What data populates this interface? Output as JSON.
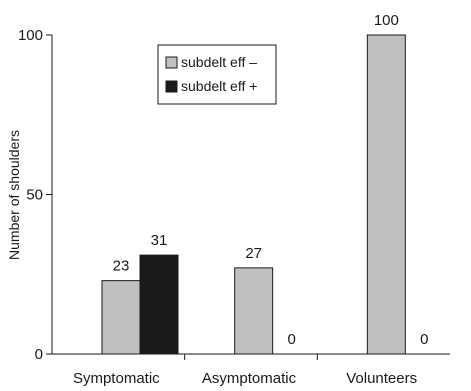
{
  "chart_data": {
    "type": "bar",
    "title": "",
    "xlabel": "",
    "ylabel": "Number of shoulders",
    "ylim": [
      0,
      100
    ],
    "yticks": [
      0,
      50,
      100
    ],
    "grid": false,
    "legend_position": "top-center",
    "categories": [
      "Symptomatic",
      "Asymptomatic",
      "Volunteers"
    ],
    "series": [
      {
        "name": "subdelt eff –",
        "values": [
          23,
          27,
          100
        ],
        "color": "#c0c0c0"
      },
      {
        "name": "subdelt eff +",
        "values": [
          31,
          0,
          0
        ],
        "color": "#1a1a1a"
      }
    ]
  }
}
